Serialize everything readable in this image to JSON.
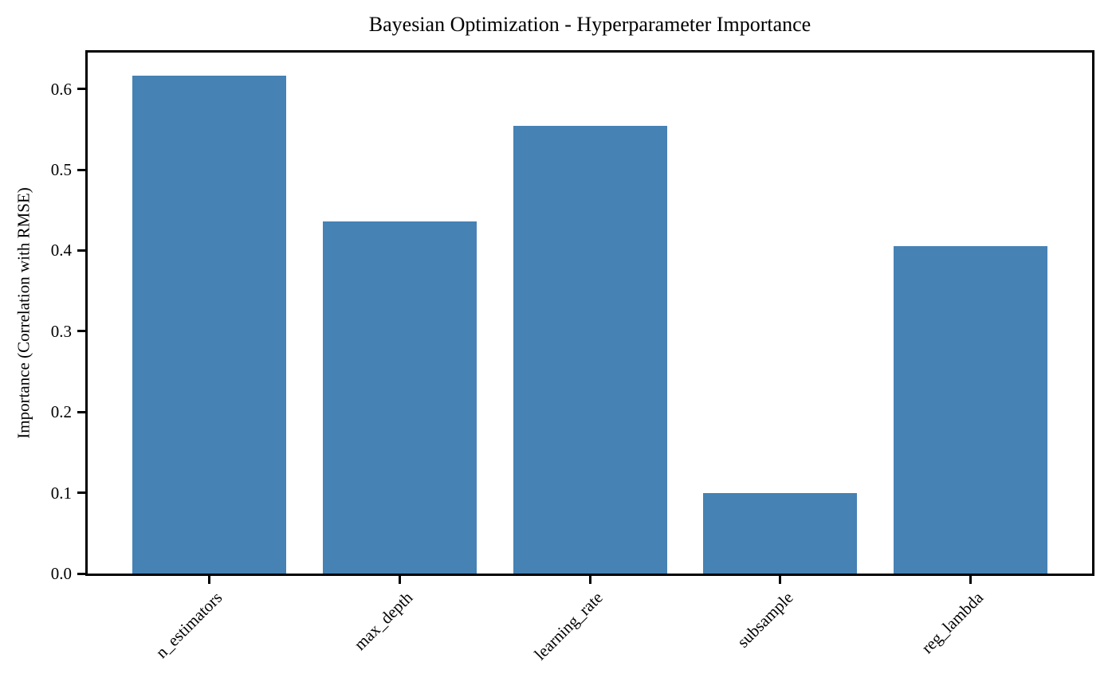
{
  "chart_data": {
    "type": "bar",
    "title": "Bayesian Optimization - Hyperparameter Importance",
    "xlabel": "",
    "ylabel": "Importance (Correlation with RMSE)",
    "categories": [
      "n_estimators",
      "max_depth",
      "learning_rate",
      "subsample",
      "reg_lambda"
    ],
    "values": [
      0.616,
      0.436,
      0.554,
      0.1,
      0.405
    ],
    "yticks": [
      0.0,
      0.1,
      0.2,
      0.3,
      0.4,
      0.5,
      0.6
    ],
    "ylim": [
      0,
      0.645
    ],
    "bar_color": "#4682b4",
    "axis_color": "#000000",
    "background_color": "#ffffff",
    "grid": false,
    "legend": "none",
    "x_tick_label_rotation_deg": 45
  }
}
